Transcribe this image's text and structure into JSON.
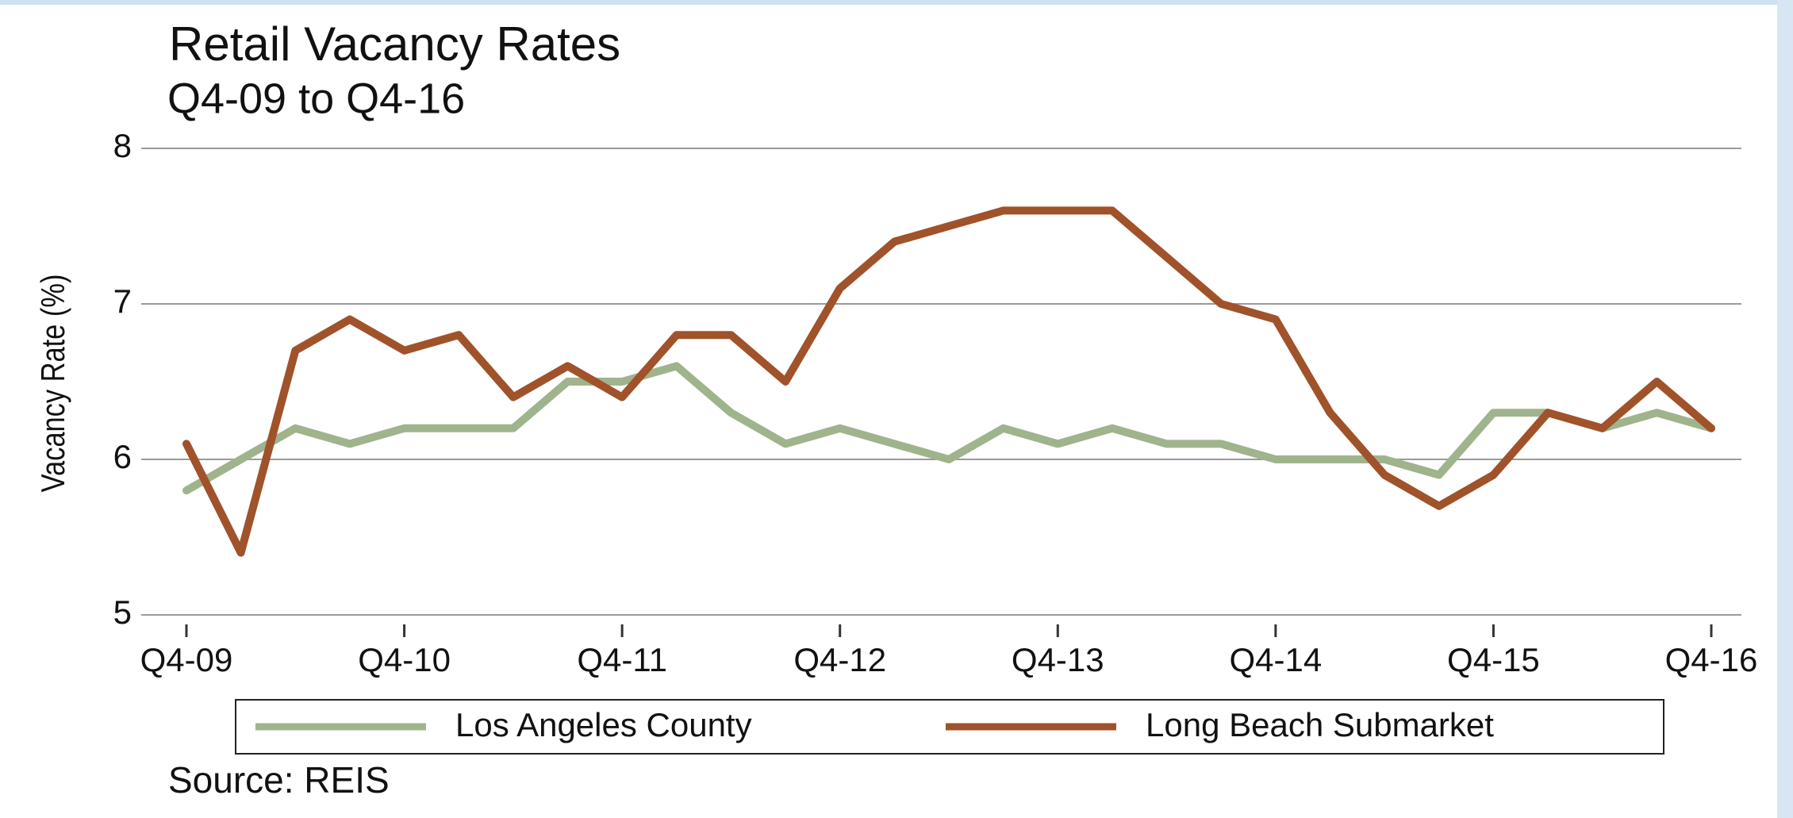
{
  "chart_data": {
    "type": "line",
    "title": "Retail Vacancy Rates",
    "subtitle": "Q4-09 to Q4-16",
    "y_label": "Vacancy Rate (%)",
    "source": "Source: REIS",
    "categories": [
      "Q4-09",
      null,
      null,
      null,
      "Q4-10",
      null,
      null,
      null,
      "Q4-11",
      null,
      null,
      null,
      "Q4-12",
      null,
      null,
      null,
      "Q4-13",
      null,
      null,
      null,
      "Q4-14",
      null,
      null,
      null,
      "Q4-15",
      null,
      null,
      null,
      "Q4-16"
    ],
    "series": [
      {
        "name": "Los Angeles County",
        "color": "#9fb48c",
        "values": [
          5.8,
          6.0,
          6.2,
          6.1,
          6.2,
          6.2,
          6.2,
          6.5,
          6.5,
          6.6,
          6.3,
          6.1,
          6.2,
          6.1,
          6.0,
          6.2,
          6.1,
          6.2,
          6.1,
          6.1,
          6.0,
          6.0,
          6.0,
          5.9,
          6.3,
          6.3,
          6.2,
          6.3,
          6.2
        ]
      },
      {
        "name": "Long Beach Submarket",
        "color": "#a0522a",
        "values": [
          6.1,
          5.4,
          6.7,
          6.9,
          6.7,
          6.8,
          6.4,
          6.6,
          6.4,
          6.8,
          6.8,
          6.5,
          7.1,
          7.4,
          7.5,
          7.6,
          7.6,
          7.6,
          7.3,
          7.0,
          6.9,
          6.3,
          5.9,
          5.7,
          5.9,
          6.3,
          6.2,
          6.5,
          6.2
        ]
      }
    ],
    "ylim": [
      5,
      8
    ],
    "yticks": [
      5,
      6,
      7,
      8
    ],
    "grid": true,
    "legend": "bottom"
  }
}
